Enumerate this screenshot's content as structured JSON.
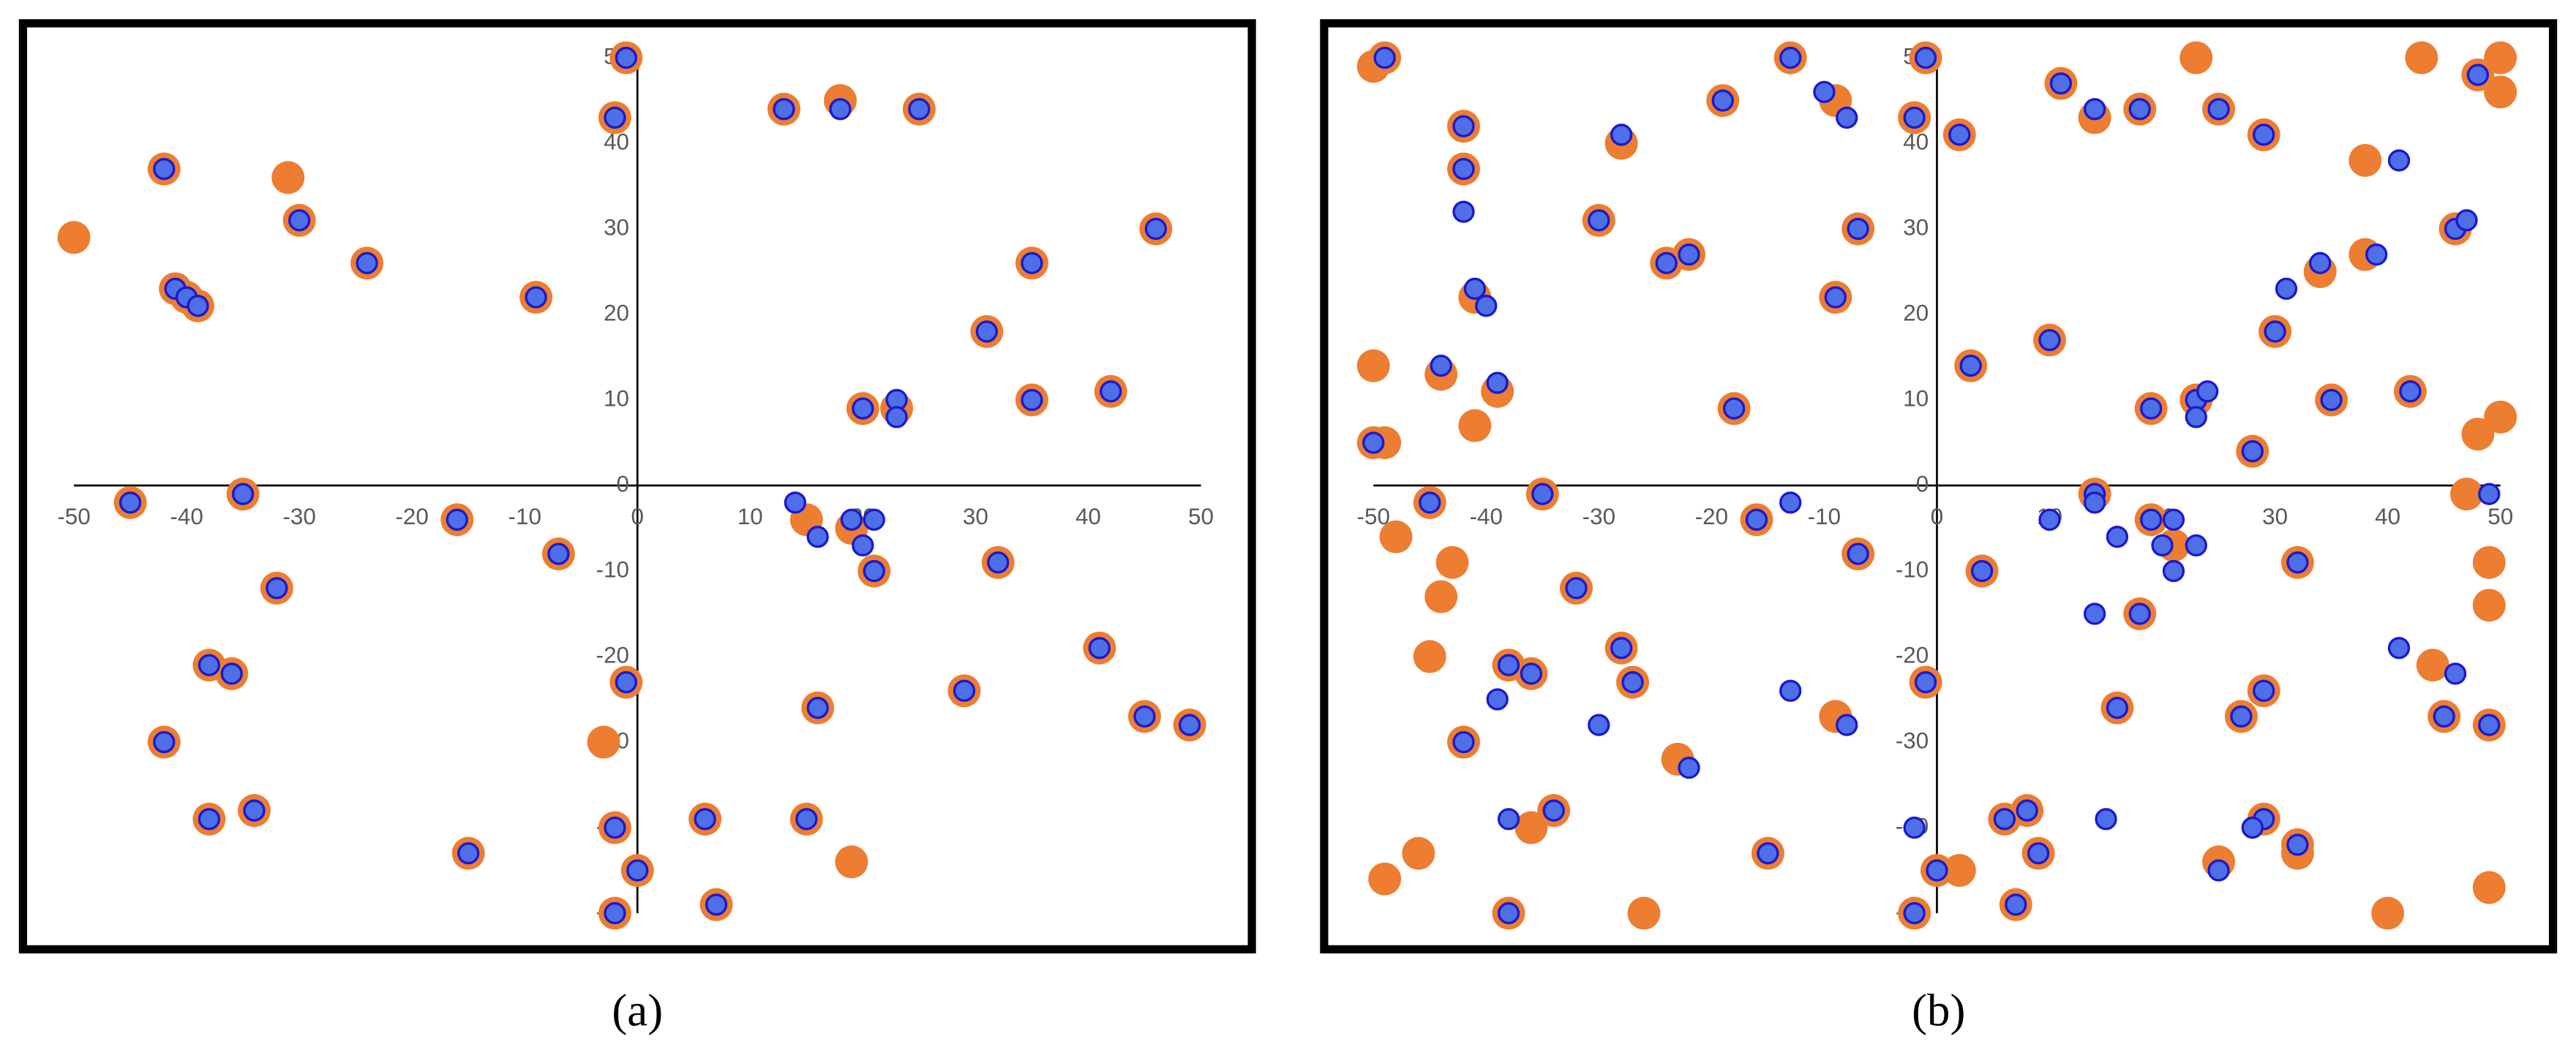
{
  "chart_data": [
    {
      "type": "scatter",
      "label": "(a)",
      "xlim": [
        -50,
        50
      ],
      "ylim": [
        -50,
        50
      ],
      "xticks": [
        -50,
        -40,
        -30,
        -20,
        -10,
        0,
        10,
        20,
        30,
        40,
        50
      ],
      "yticks": [
        -50,
        -40,
        -30,
        -20,
        -10,
        0,
        10,
        20,
        30,
        40,
        50
      ],
      "grid": false,
      "series": [
        {
          "color": "#ED7D31",
          "x": [
            -1,
            -2,
            -42,
            -31,
            -30,
            -24,
            -50,
            -41,
            -40,
            -39,
            -9,
            13,
            18,
            25,
            46,
            35,
            31,
            35,
            42,
            20,
            23,
            -45,
            -35,
            -16,
            -7,
            15,
            19,
            21,
            32,
            -32,
            -38,
            -36,
            41,
            -1,
            16,
            29,
            45,
            49,
            -42,
            -3,
            -38,
            -34,
            -15,
            -2,
            6,
            15,
            19,
            0,
            7,
            -2
          ],
          "values": [
            50,
            43,
            37,
            36,
            31,
            26,
            29,
            23,
            22,
            21,
            22,
            44,
            45,
            44,
            30,
            26,
            18,
            10,
            11,
            9,
            9,
            -2,
            -1,
            -4,
            -8,
            -4,
            -5,
            -10,
            -9,
            -12,
            -21,
            -22,
            -19,
            -23,
            -26,
            -24,
            -27,
            -28,
            -30,
            -30,
            -39,
            -38,
            -43,
            -40,
            -39,
            -39,
            -44,
            -45,
            -49,
            -50
          ]
        },
        {
          "color": "#4F6FE8",
          "edge_color": "#1A1ACC",
          "x": [
            -1,
            -2,
            -42,
            -30,
            -24,
            -41,
            -40,
            -39,
            -9,
            13,
            18,
            25,
            46,
            35,
            31,
            35,
            42,
            20,
            23,
            23,
            -45,
            -35,
            -16,
            -7,
            14,
            16,
            19,
            21,
            20,
            21,
            32,
            -32,
            -38,
            -36,
            41,
            -1,
            16,
            29,
            45,
            49,
            -42,
            -38,
            -34,
            -15,
            -2,
            6,
            15,
            0,
            7,
            -2
          ],
          "values": [
            50,
            43,
            37,
            31,
            26,
            23,
            22,
            21,
            22,
            44,
            44,
            44,
            30,
            26,
            18,
            10,
            11,
            9,
            10,
            8,
            -2,
            -1,
            -4,
            -8,
            -2,
            -6,
            -4,
            -4,
            -7,
            -10,
            -9,
            -12,
            -21,
            -22,
            -19,
            -23,
            -26,
            -24,
            -27,
            -28,
            -30,
            -39,
            -38,
            -43,
            -40,
            -39,
            -39,
            -45,
            -49,
            -50
          ]
        }
      ]
    },
    {
      "type": "scatter",
      "label": "(b)",
      "xlim": [
        -50,
        50
      ],
      "ylim": [
        -50,
        50
      ],
      "xticks": [
        -50,
        -40,
        -30,
        -20,
        -10,
        0,
        10,
        20,
        30,
        40,
        50
      ],
      "yticks": [
        -50,
        -40,
        -30,
        -20,
        -10,
        0,
        10,
        20,
        30,
        40,
        50
      ],
      "grid": false,
      "series": [
        {
          "color": "#ED7D31",
          "x": [
            -49,
            -50,
            -13,
            -1,
            23,
            43,
            50,
            50,
            48,
            -42,
            -42,
            -28,
            -19,
            -9,
            -2,
            2,
            11,
            14,
            18,
            25,
            29,
            38,
            -30,
            -7,
            -24,
            -22,
            -41,
            -9,
            46,
            38,
            34,
            30,
            -50,
            -44,
            -39,
            -50,
            -49,
            -41,
            -18,
            3,
            10,
            19,
            23,
            28,
            35,
            42,
            48,
            50,
            -48,
            -45,
            -35,
            -43,
            -44,
            -16,
            -7,
            14,
            19,
            21,
            4,
            32,
            -32,
            -28,
            -45,
            -38,
            -36,
            -27,
            -42,
            -23,
            -9,
            16,
            18,
            27,
            29,
            44,
            45,
            49,
            49,
            49,
            47,
            -1,
            -36,
            -34,
            -46,
            -49,
            -15,
            -38,
            -26,
            -2,
            0,
            2,
            6,
            8,
            9,
            7,
            25,
            29,
            32,
            32,
            40,
            49
          ],
          "values": [
            50,
            49,
            50,
            50,
            50,
            50,
            50,
            46,
            48,
            42,
            37,
            40,
            45,
            45,
            43,
            41,
            47,
            43,
            44,
            44,
            41,
            38,
            31,
            30,
            26,
            27,
            22,
            22,
            30,
            27,
            25,
            18,
            14,
            13,
            11,
            5,
            5,
            7,
            9,
            14,
            17,
            9,
            10,
            4,
            10,
            11,
            6,
            8,
            -6,
            -2,
            -1,
            -9,
            -13,
            -4,
            -8,
            -1,
            -4,
            -7,
            -10,
            -9,
            -12,
            -19,
            -20,
            -21,
            -22,
            -23,
            -30,
            -32,
            -27,
            -26,
            -15,
            -27,
            -24,
            -21,
            -27,
            -28,
            -9,
            -14,
            -1,
            -23,
            -40,
            -38,
            -43,
            -46,
            -43,
            -50,
            -50,
            -50,
            -45,
            -45,
            -39,
            -38,
            -43,
            -49,
            -44,
            -39,
            -42,
            -43,
            -50,
            -47
          ]
        },
        {
          "color": "#4F6FE8",
          "edge_color": "#1A1ACC",
          "x": [
            -49,
            -13,
            -1,
            48,
            -42,
            -42,
            -42,
            -28,
            -19,
            -10,
            -8,
            -2,
            2,
            11,
            14,
            18,
            25,
            29,
            41,
            -30,
            -7,
            -24,
            -22,
            -41,
            -40,
            -9,
            46,
            47,
            34,
            39,
            31,
            30,
            -44,
            -39,
            -50,
            -18,
            3,
            10,
            19,
            23,
            23,
            24,
            28,
            35,
            42,
            49,
            -45,
            -35,
            -16,
            -13,
            -7,
            14,
            14,
            10,
            16,
            19,
            21,
            20,
            21,
            23,
            4,
            32,
            -32,
            -28,
            -38,
            -36,
            -27,
            -42,
            -39,
            -30,
            -22,
            -13,
            -8,
            14,
            16,
            18,
            27,
            29,
            41,
            46,
            45,
            49,
            -1,
            -38,
            -34,
            -15,
            -38,
            -2,
            -2,
            0,
            6,
            8,
            9,
            7,
            15,
            25,
            29,
            28,
            32
          ],
          "values": [
            50,
            50,
            50,
            48,
            42,
            37,
            32,
            41,
            45,
            46,
            43,
            43,
            41,
            47,
            44,
            44,
            44,
            41,
            38,
            31,
            30,
            26,
            27,
            23,
            21,
            22,
            30,
            31,
            26,
            27,
            23,
            18,
            14,
            12,
            5,
            9,
            14,
            17,
            9,
            10,
            8,
            11,
            4,
            10,
            11,
            -1,
            -2,
            -1,
            -4,
            -2,
            -8,
            -1,
            -2,
            -4,
            -6,
            -4,
            -4,
            -7,
            -10,
            -7,
            -10,
            -9,
            -12,
            -19,
            -21,
            -22,
            -23,
            -30,
            -25,
            -28,
            -33,
            -24,
            -28,
            -15,
            -26,
            -15,
            -27,
            -24,
            -19,
            -22,
            -27,
            -28,
            -23,
            -39,
            -38,
            -43,
            -50,
            -50,
            -40,
            -45,
            -39,
            -38,
            -43,
            -49,
            -39,
            -45,
            -39,
            -40,
            -42
          ]
        }
      ]
    }
  ]
}
